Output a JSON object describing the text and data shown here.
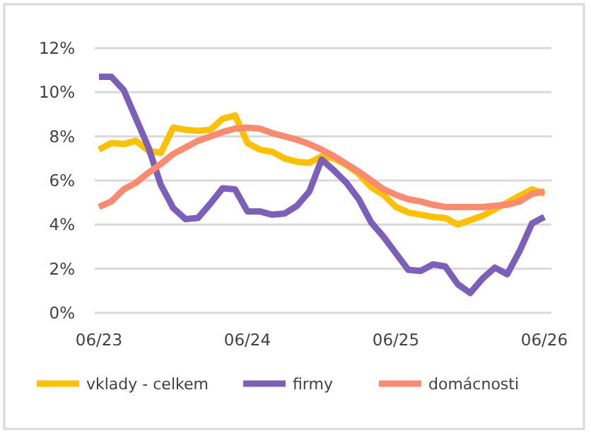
{
  "chart_data": {
    "type": "line",
    "categories": [
      "06/23",
      null,
      null,
      null,
      null,
      null,
      null,
      null,
      null,
      null,
      null,
      null,
      "06/24",
      null,
      null,
      null,
      null,
      null,
      null,
      null,
      null,
      null,
      null,
      null,
      "06/25",
      null,
      null,
      null,
      null,
      null,
      null,
      null,
      null,
      null,
      null,
      null,
      "06/26"
    ],
    "ylim": [
      0,
      12
    ],
    "yticks": [
      {
        "value": 0,
        "label": "0%"
      },
      {
        "value": 2,
        "label": "2%"
      },
      {
        "value": 4,
        "label": "4%"
      },
      {
        "value": 6,
        "label": "6%"
      },
      {
        "value": 8,
        "label": "8%"
      },
      {
        "value": 10,
        "label": "10%"
      },
      {
        "value": 12,
        "label": "12%"
      }
    ],
    "grid": "y",
    "legend": "bottom",
    "line_style": "solid",
    "marker": "none",
    "series": [
      {
        "name": "vklady - celkem",
        "color": "#ffc000",
        "values": [
          7.4,
          7.7,
          7.65,
          7.8,
          7.35,
          7.25,
          8.4,
          8.3,
          8.25,
          8.3,
          8.8,
          8.95,
          7.7,
          7.4,
          7.3,
          7.0,
          6.85,
          6.8,
          7.1,
          7.0,
          6.7,
          6.3,
          5.7,
          5.35,
          4.8,
          4.55,
          4.45,
          4.35,
          4.3,
          4.0,
          4.2,
          4.4,
          4.7,
          5.0,
          5.3,
          5.6,
          5.4
        ]
      },
      {
        "name": "firmy",
        "color": "#7b5fb8",
        "values": [
          10.7,
          10.7,
          10.1,
          8.8,
          7.5,
          5.8,
          4.75,
          4.25,
          4.3,
          4.95,
          5.65,
          5.6,
          4.6,
          4.6,
          4.45,
          4.5,
          4.85,
          5.5,
          6.95,
          6.45,
          5.9,
          5.15,
          4.1,
          3.45,
          2.7,
          1.95,
          1.9,
          2.2,
          2.1,
          1.3,
          0.9,
          1.55,
          2.05,
          1.75,
          2.8,
          4.05,
          4.35
        ]
      },
      {
        "name": "domácnosti",
        "color": "#fa8a70",
        "values": [
          4.8,
          5.05,
          5.6,
          5.9,
          6.35,
          6.75,
          7.2,
          7.5,
          7.8,
          8.0,
          8.2,
          8.35,
          8.4,
          8.35,
          8.15,
          8.0,
          7.85,
          7.65,
          7.4,
          7.1,
          6.75,
          6.4,
          6.0,
          5.6,
          5.35,
          5.15,
          5.05,
          4.9,
          4.8,
          4.8,
          4.8,
          4.8,
          4.85,
          4.9,
          5.05,
          5.4,
          5.5
        ]
      }
    ]
  }
}
